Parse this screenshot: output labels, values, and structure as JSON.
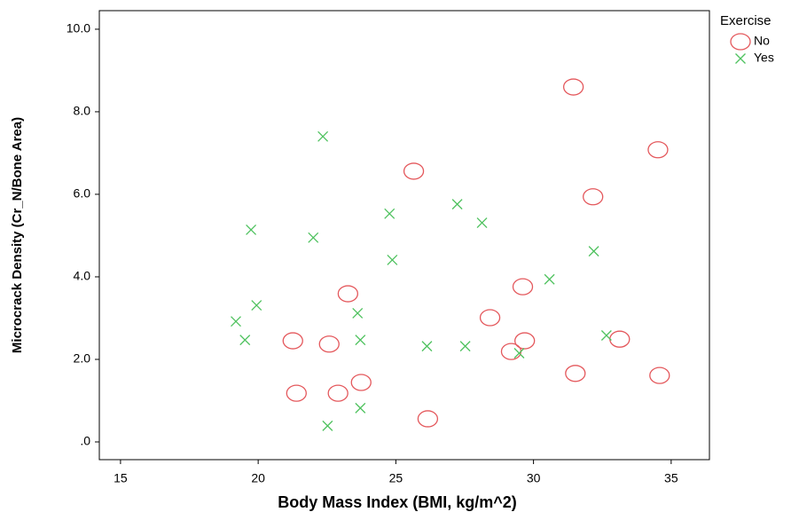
{
  "chart_data": {
    "type": "scatter",
    "x_label": "Body Mass Index (BMI, kg/m^2)",
    "y_label": "Microcrack Density (Cr_N/Bone Area)",
    "legend_title": "Exercise",
    "legend_position": "right",
    "xlim": [
      14.23,
      36.39
    ],
    "xticks": [
      15,
      20,
      25,
      30,
      35
    ],
    "ylim": [
      -0.43,
      10.45
    ],
    "yticks": [
      {
        "value": 0,
        "label": ".0"
      },
      {
        "value": 2,
        "label": "2.0"
      },
      {
        "value": 4,
        "label": "4.0"
      },
      {
        "value": 6,
        "label": "6.0"
      },
      {
        "value": 8,
        "label": "8.0"
      },
      {
        "value": 10,
        "label": "10.0"
      }
    ],
    "series": [
      {
        "name": "No",
        "color": "#e4585c",
        "marker": "circle",
        "x": [
          31.45,
          34.52,
          25.65,
          32.16,
          23.26,
          29.61,
          28.42,
          21.26,
          22.58,
          29.68,
          29.19,
          33.13,
          21.39,
          22.9,
          23.74,
          31.52,
          34.58,
          26.16
        ],
        "values": [
          8.6,
          7.08,
          6.56,
          5.94,
          3.59,
          3.76,
          3.01,
          2.45,
          2.37,
          2.45,
          2.19,
          2.49,
          1.18,
          1.18,
          1.44,
          1.66,
          1.61,
          0.56
        ]
      },
      {
        "name": "Yes",
        "color": "#4fc25f",
        "marker": "x",
        "x": [
          22.35,
          19.74,
          22.0,
          24.77,
          27.23,
          28.13,
          24.87,
          32.19,
          30.58,
          19.94,
          19.19,
          23.61,
          19.52,
          23.71,
          26.13,
          27.52,
          29.48,
          32.65,
          23.71,
          22.52
        ],
        "values": [
          7.4,
          5.14,
          4.95,
          5.53,
          5.76,
          5.31,
          4.41,
          4.62,
          3.94,
          3.31,
          2.92,
          3.12,
          2.47,
          2.47,
          2.32,
          2.32,
          2.15,
          2.58,
          0.82,
          0.39
        ]
      }
    ]
  }
}
